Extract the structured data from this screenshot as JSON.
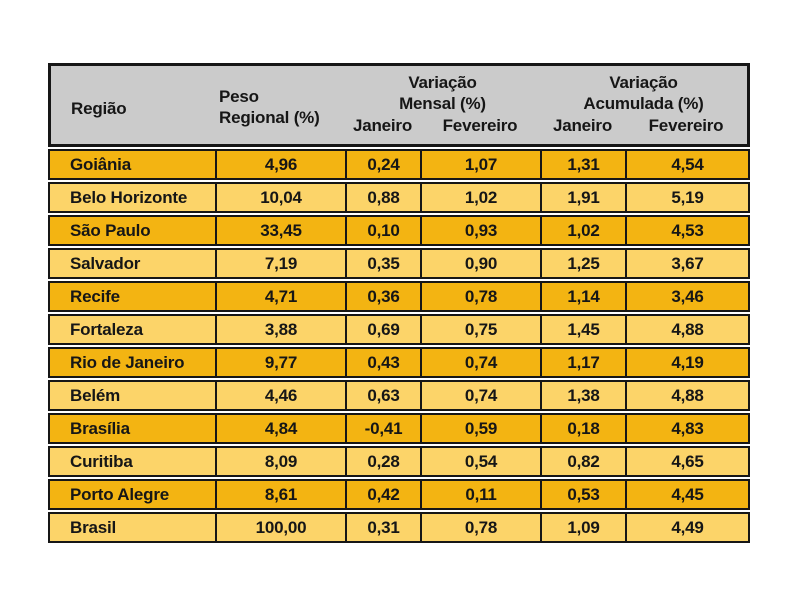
{
  "chart_data": {
    "type": "table",
    "header": {
      "regiao": "Região",
      "peso": [
        "Peso",
        "Regional (%)"
      ],
      "variacao_mensal": [
        "Variação",
        "Mensal (%)"
      ],
      "variacao_acumulada": [
        "Variação",
        "Acumulada (%)"
      ],
      "sub_mensal_jan": "Janeiro",
      "sub_mensal_fev": "Fevereiro",
      "sub_acum_jan": "Janeiro",
      "sub_acum_fev": "Fevereiro"
    },
    "columns_semantic": [
      "Região",
      "Peso Regional (%)",
      "Variação Mensal (%) Janeiro",
      "Variação Mensal (%) Fevereiro",
      "Variação Acumulada (%) Janeiro",
      "Variação Acumulada (%) Fevereiro"
    ],
    "rows": [
      {
        "cells": [
          "Goiânia",
          "4,96",
          "0,24",
          "1,07",
          "1,31",
          "4,54"
        ]
      },
      {
        "cells": [
          "Belo Horizonte",
          "10,04",
          "0,88",
          "1,02",
          "1,91",
          "5,19"
        ]
      },
      {
        "cells": [
          "São Paulo",
          "33,45",
          "0,10",
          "0,93",
          "1,02",
          "4,53"
        ]
      },
      {
        "cells": [
          "Salvador",
          "7,19",
          "0,35",
          "0,90",
          "1,25",
          "3,67"
        ]
      },
      {
        "cells": [
          "Recife",
          "4,71",
          "0,36",
          "0,78",
          "1,14",
          "3,46"
        ]
      },
      {
        "cells": [
          "Fortaleza",
          "3,88",
          "0,69",
          "0,75",
          "1,45",
          "4,88"
        ]
      },
      {
        "cells": [
          "Rio de Janeiro",
          "9,77",
          "0,43",
          "0,74",
          "1,17",
          "4,19"
        ]
      },
      {
        "cells": [
          "Belém",
          "4,46",
          "0,63",
          "0,74",
          "1,38",
          "4,88"
        ]
      },
      {
        "cells": [
          "Brasília",
          "4,84",
          "-0,41",
          "0,59",
          "0,18",
          "4,83"
        ]
      },
      {
        "cells": [
          "Curitiba",
          "8,09",
          "0,28",
          "0,54",
          "0,82",
          "4,65"
        ]
      },
      {
        "cells": [
          "Porto Alegre",
          "8,61",
          "0,42",
          "0,11",
          "0,53",
          "4,45"
        ]
      },
      {
        "cells": [
          "Brasil",
          "100,00",
          "0,31",
          "0,78",
          "1,09",
          "4,49"
        ]
      }
    ]
  },
  "colors": {
    "header_bg": "#cbcbcb",
    "row_dark": "#f3b412",
    "row_light": "#fcd469",
    "border": "#161616",
    "page_bg": "#ffffff",
    "text": "#161616"
  }
}
